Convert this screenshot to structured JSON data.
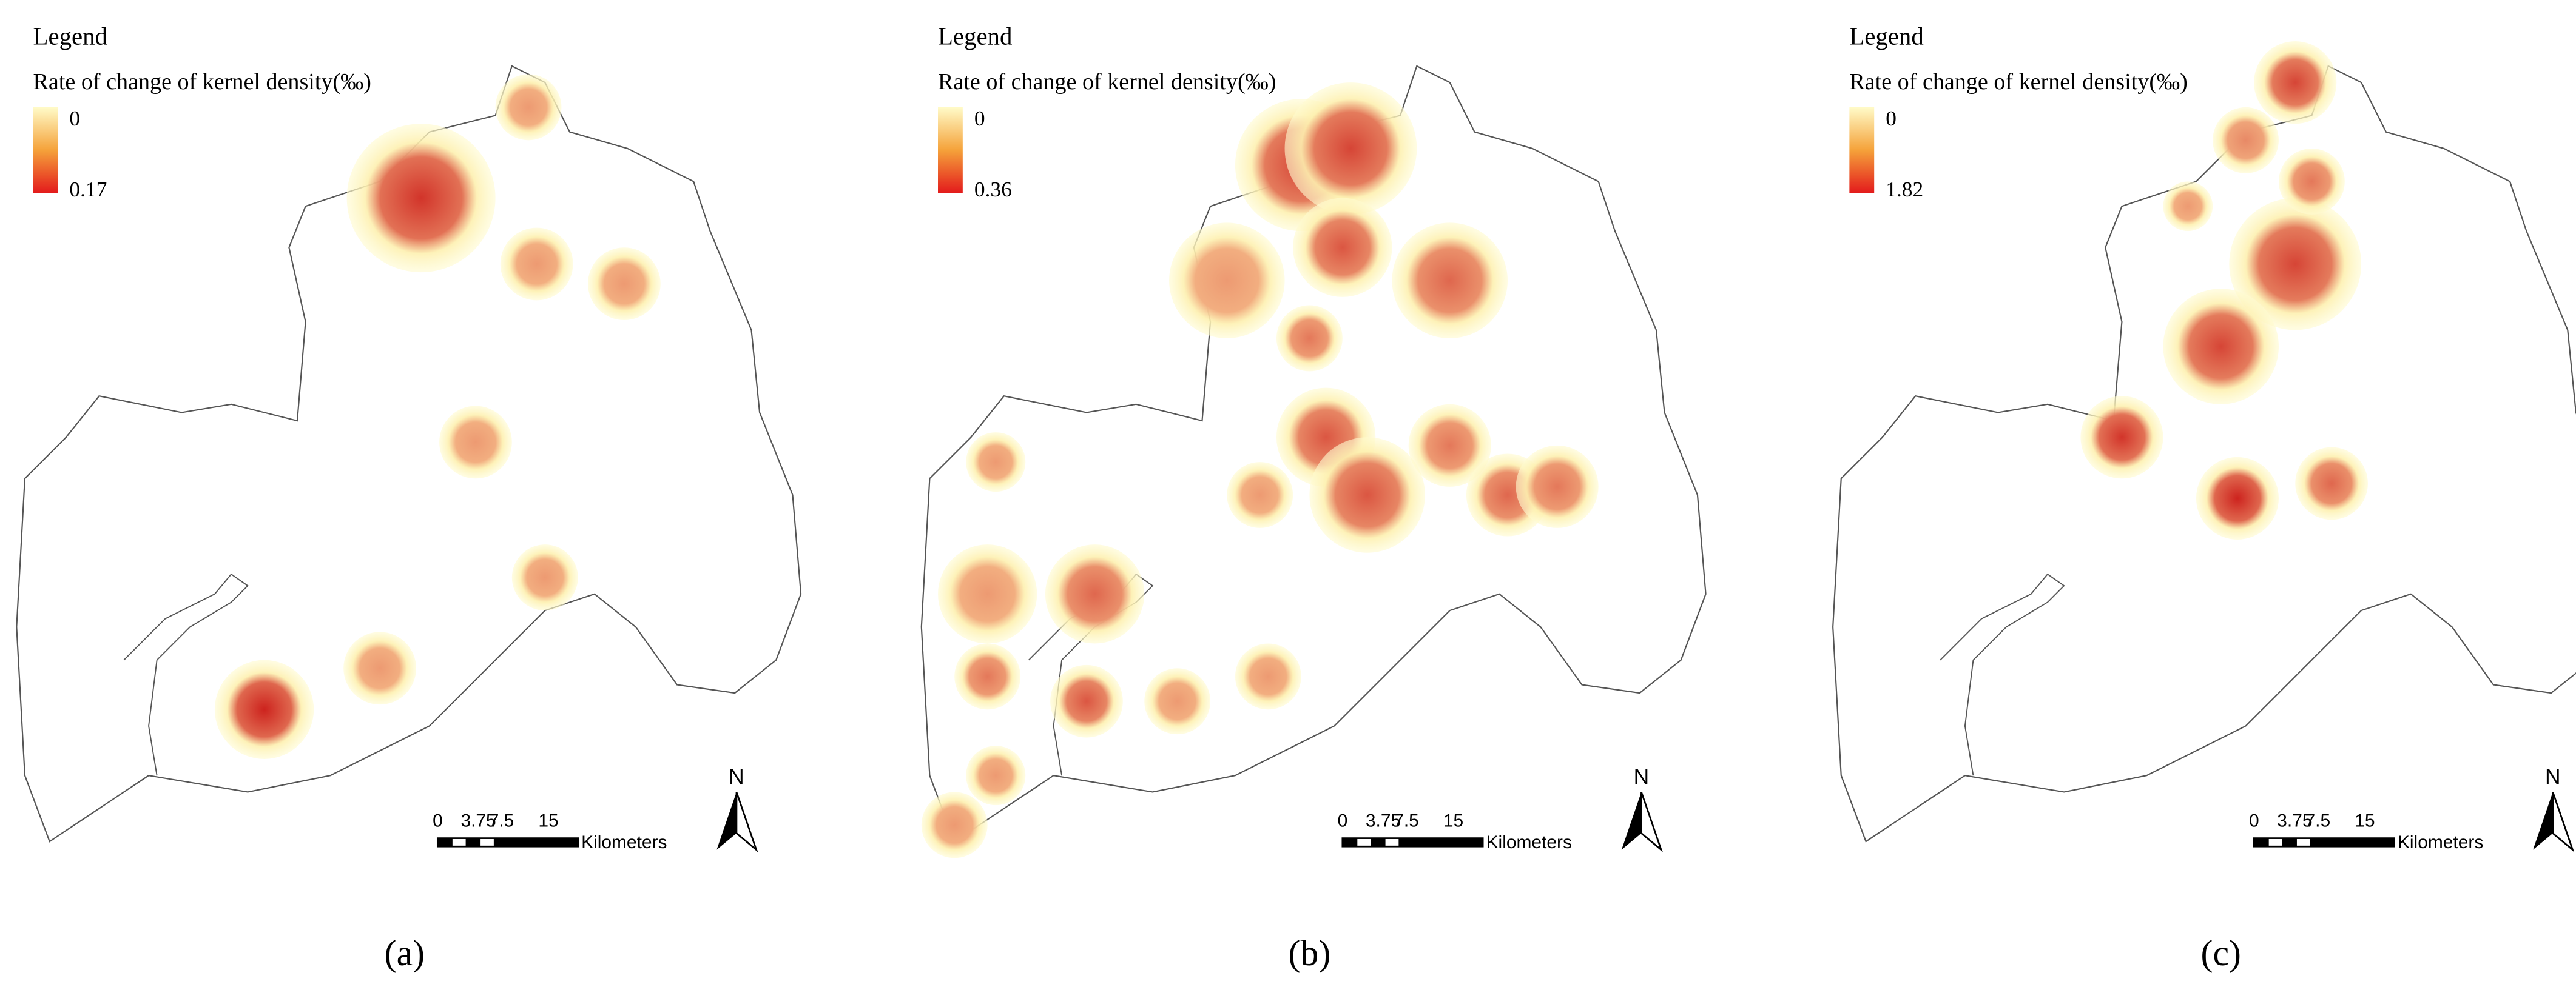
{
  "panels": [
    {
      "legend": {
        "title": "Legend",
        "subtitle": "Rate of change of kernel density(‰)",
        "min": "0",
        "max": "0.17"
      },
      "scale_bar": {
        "labels": [
          "0",
          "3.75",
          "7.5",
          "15"
        ],
        "unit": "Kilometers"
      },
      "north": "N",
      "caption": "(a)"
    },
    {
      "legend": {
        "title": "Legend",
        "subtitle": "Rate of change of kernel density(‰)",
        "min": "0",
        "max": "0.36"
      },
      "scale_bar": {
        "labels": [
          "0",
          "3.75",
          "7.5",
          "15"
        ],
        "unit": "Kilometers"
      },
      "north": "N",
      "caption": "(b)"
    },
    {
      "legend": {
        "title": "Legend",
        "subtitle": "Rate of change of kernel density(‰)",
        "min": "0",
        "max": "1.82"
      },
      "scale_bar": {
        "labels": [
          "0",
          "3.75",
          "7.5",
          "15"
        ],
        "unit": "Kilometers"
      },
      "north": "N",
      "caption": "(c)"
    }
  ]
}
